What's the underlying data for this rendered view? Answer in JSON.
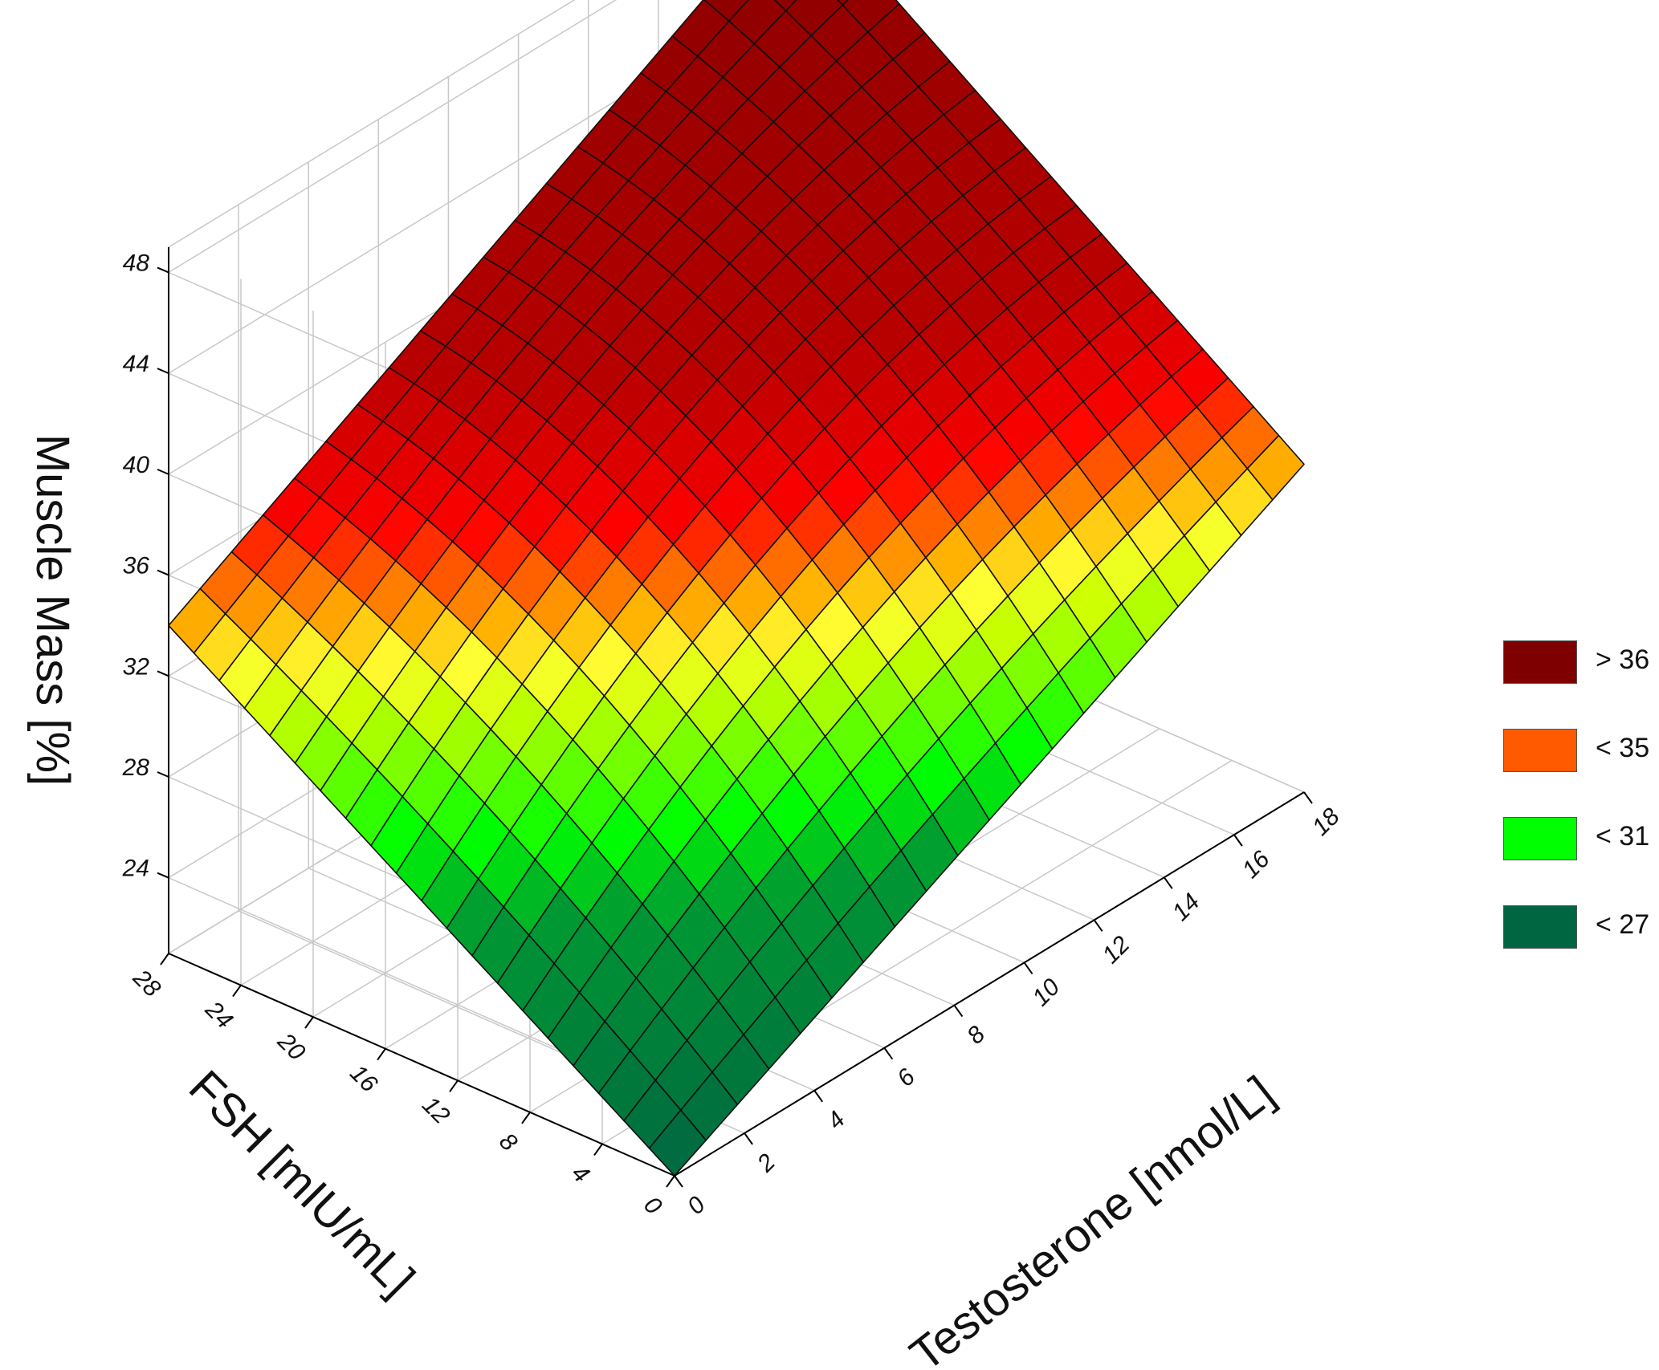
{
  "chart_data": {
    "type": "surface3d",
    "title": "",
    "x_axis": {
      "label": "Testosterone [nmol/L]",
      "range": [
        0,
        18
      ],
      "ticks": [
        "0",
        "2",
        "4",
        "6",
        "8",
        "10",
        "12",
        "14",
        "16",
        "18"
      ]
    },
    "y_axis": {
      "label": "FSH [mIU/mL]",
      "range": [
        0,
        28
      ],
      "ticks": [
        "0",
        "4",
        "8",
        "12",
        "16",
        "20",
        "24",
        "28"
      ]
    },
    "z_axis": {
      "label": "Muscle Mass [%]",
      "range": [
        21,
        49
      ],
      "ticks": [
        "24",
        "28",
        "32",
        "36",
        "40",
        "44",
        "48"
      ]
    },
    "surface_samples": [
      {
        "testosterone": 0,
        "fsh": 0,
        "muscle_mass": 21
      },
      {
        "testosterone": 0,
        "fsh": 28,
        "muscle_mass": 34
      },
      {
        "testosterone": 18,
        "fsh": 0,
        "muscle_mass": 34
      },
      {
        "testosterone": 18,
        "fsh": 28,
        "muscle_mass": 48
      },
      {
        "testosterone": 9,
        "fsh": 14,
        "muscle_mass": 37
      }
    ],
    "grid_divisions": 20,
    "grid": true,
    "legend_position": "right",
    "legend": [
      {
        "label": "> 36",
        "color": "#7f0000"
      },
      {
        "label": "< 35",
        "color": "#ff5a00"
      },
      {
        "label": "< 31",
        "color": "#00ff00"
      },
      {
        "label": "< 27",
        "color": "#006641"
      }
    ]
  }
}
